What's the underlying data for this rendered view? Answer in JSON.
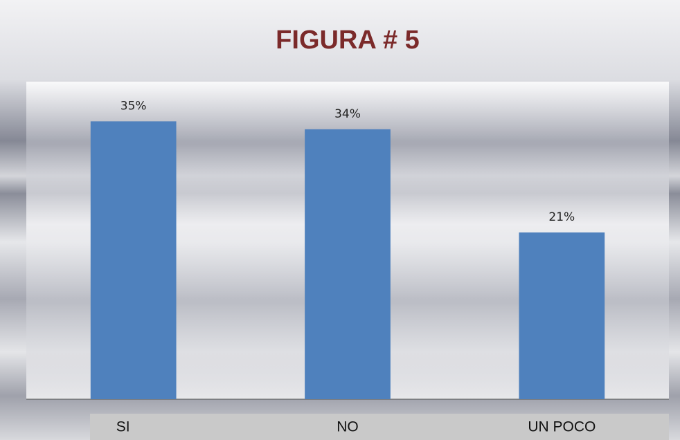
{
  "chart_data": {
    "type": "bar",
    "title": "FIGURA # 5",
    "categories": [
      "SI",
      "NO",
      "UN POCO"
    ],
    "values": [
      35,
      34,
      21
    ],
    "value_labels": [
      "35%",
      "34%",
      "21%"
    ],
    "color": "#4f81bd",
    "ylim": [
      0,
      40
    ]
  }
}
